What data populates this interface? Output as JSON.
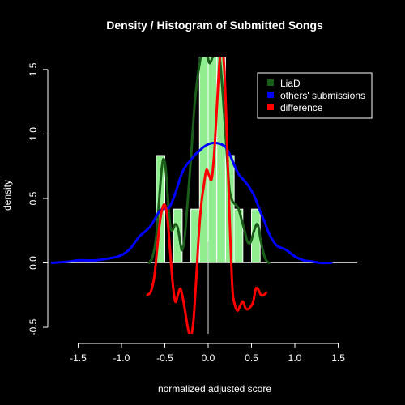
{
  "chart_data": {
    "type": "line",
    "title": "Density / Histogram of Submitted Songs",
    "xlabel": "normalized adjusted score",
    "ylabel": "density",
    "xlim": [
      -1.85,
      1.85
    ],
    "ylim": [
      -0.55,
      1.6
    ],
    "xticks": [
      "-1.5",
      "-1.0",
      "-0.5",
      "0.0",
      "0.5",
      "1.0",
      "1.5"
    ],
    "yticks": [
      "-0.5",
      "0.0",
      "0.5",
      "1.0",
      "1.5"
    ],
    "legend": {
      "position": "top-right",
      "entries": [
        {
          "label": "LiaD",
          "color": "#1a5c1a"
        },
        {
          "label": "others' submissions",
          "color": "#0000ff"
        },
        {
          "label": "difference",
          "color": "#ff0000"
        }
      ]
    },
    "histogram": {
      "color": "#90ee90",
      "bins": [
        {
          "x0": -0.6,
          "x1": -0.5,
          "value": 0.833
        },
        {
          "x0": -0.5,
          "x1": -0.4,
          "value": 0.0
        },
        {
          "x0": -0.4,
          "x1": -0.3,
          "value": 0.417
        },
        {
          "x0": -0.3,
          "x1": -0.2,
          "value": 0.0
        },
        {
          "x0": -0.2,
          "x1": -0.1,
          "value": 0.417
        },
        {
          "x0": -0.1,
          "x1": 0.0,
          "value": 1.667
        },
        {
          "x0": 0.0,
          "x1": 0.1,
          "value": 2.5
        },
        {
          "x0": 0.1,
          "x1": 0.2,
          "value": 1.667
        },
        {
          "x0": 0.2,
          "x1": 0.3,
          "value": 0.833
        },
        {
          "x0": 0.3,
          "x1": 0.4,
          "value": 0.417
        },
        {
          "x0": 0.4,
          "x1": 0.5,
          "value": 0.0
        },
        {
          "x0": 0.5,
          "x1": 0.6,
          "value": 0.417
        }
      ]
    },
    "series": [
      {
        "name": "LiaD",
        "color": "#1a5c1a",
        "x": [
          -0.68,
          -0.64,
          -0.6,
          -0.57,
          -0.54,
          -0.52,
          -0.5,
          -0.48,
          -0.46,
          -0.44,
          -0.42,
          -0.4,
          -0.38,
          -0.35,
          -0.32,
          -0.3,
          -0.27,
          -0.24,
          -0.2,
          -0.16,
          -0.12,
          -0.08,
          -0.05,
          -0.02,
          0.0,
          0.02,
          0.05,
          0.08,
          0.11,
          0.14,
          0.17,
          0.2,
          0.23,
          0.25,
          0.28,
          0.32,
          0.35,
          0.38,
          0.42,
          0.45,
          0.48,
          0.5,
          0.53,
          0.56,
          0.58,
          0.6,
          0.63,
          0.66,
          0.7
        ],
        "y": [
          0.0,
          0.05,
          0.2,
          0.45,
          0.7,
          0.8,
          0.78,
          0.65,
          0.45,
          0.3,
          0.25,
          0.27,
          0.3,
          0.27,
          0.15,
          0.1,
          0.2,
          0.45,
          0.8,
          1.2,
          1.45,
          1.62,
          1.7,
          1.65,
          1.58,
          1.55,
          1.6,
          1.7,
          1.68,
          1.55,
          1.3,
          1.0,
          0.7,
          0.55,
          0.48,
          0.45,
          0.42,
          0.35,
          0.25,
          0.17,
          0.15,
          0.18,
          0.25,
          0.3,
          0.28,
          0.2,
          0.1,
          0.03,
          0.0
        ]
      },
      {
        "name": "others' submissions",
        "color": "#0000ff",
        "x": [
          -1.8,
          -1.6,
          -1.5,
          -1.3,
          -1.1,
          -1.0,
          -0.9,
          -0.8,
          -0.75,
          -0.7,
          -0.65,
          -0.6,
          -0.55,
          -0.5,
          -0.45,
          -0.4,
          -0.35,
          -0.3,
          -0.25,
          -0.2,
          -0.15,
          -0.1,
          -0.05,
          0.0,
          0.05,
          0.1,
          0.15,
          0.2,
          0.25,
          0.3,
          0.35,
          0.4,
          0.45,
          0.5,
          0.55,
          0.6,
          0.65,
          0.7,
          0.75,
          0.8,
          0.9,
          1.0,
          1.1,
          1.2,
          1.3,
          1.42
        ],
        "y": [
          0.0,
          0.01,
          0.02,
          0.02,
          0.04,
          0.06,
          0.11,
          0.2,
          0.23,
          0.26,
          0.3,
          0.36,
          0.41,
          0.42,
          0.43,
          0.5,
          0.6,
          0.7,
          0.76,
          0.8,
          0.84,
          0.87,
          0.9,
          0.92,
          0.93,
          0.93,
          0.92,
          0.9,
          0.84,
          0.76,
          0.69,
          0.65,
          0.61,
          0.56,
          0.49,
          0.4,
          0.32,
          0.23,
          0.17,
          0.13,
          0.1,
          0.05,
          0.02,
          0.01,
          0.0,
          0.0
        ]
      },
      {
        "name": "difference",
        "color": "#ff0000",
        "x": [
          -0.7,
          -0.66,
          -0.62,
          -0.59,
          -0.56,
          -0.53,
          -0.5,
          -0.47,
          -0.44,
          -0.41,
          -0.38,
          -0.35,
          -0.32,
          -0.29,
          -0.26,
          -0.23,
          -0.2,
          -0.17,
          -0.14,
          -0.11,
          -0.08,
          -0.05,
          -0.02,
          0.01,
          0.04,
          0.07,
          0.1,
          0.13,
          0.16,
          0.19,
          0.22,
          0.25,
          0.28,
          0.31,
          0.34,
          0.37,
          0.4,
          0.43,
          0.46,
          0.49,
          0.52,
          0.55,
          0.58,
          0.61,
          0.64,
          0.67
        ],
        "y": [
          -0.25,
          -0.22,
          -0.1,
          0.1,
          0.3,
          0.42,
          0.45,
          0.35,
          0.1,
          -0.15,
          -0.3,
          -0.25,
          -0.2,
          -0.28,
          -0.4,
          -0.52,
          -0.57,
          -0.45,
          -0.15,
          0.2,
          0.45,
          0.6,
          0.72,
          0.68,
          0.65,
          0.85,
          1.2,
          1.55,
          1.7,
          1.45,
          0.9,
          0.3,
          -0.2,
          -0.33,
          -0.37,
          -0.33,
          -0.3,
          -0.35,
          -0.36,
          -0.34,
          -0.3,
          -0.2,
          -0.21,
          -0.25,
          -0.25,
          -0.23
        ]
      }
    ]
  }
}
